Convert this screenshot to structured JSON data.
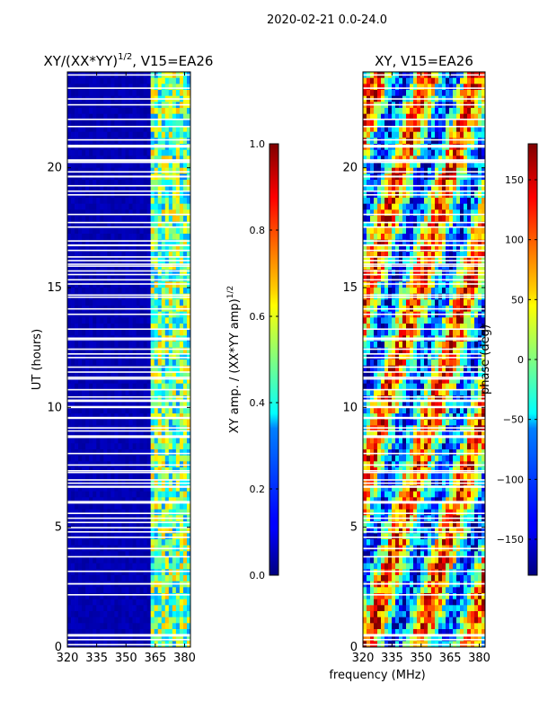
{
  "suptitle": "2020-02-21 0.0-24.0",
  "chart_data": [
    {
      "type": "heatmap",
      "title_text": "XY/(XX*YY)",
      "title_exp": "1/2",
      "title_suffix": ", V15=EA26",
      "xlabel": "",
      "ylabel": "UT (hours)",
      "xlim": [
        320,
        383
      ],
      "ylim": [
        0,
        24
      ],
      "x_ticks": [
        320,
        335,
        350,
        365,
        380
      ],
      "y_ticks": [
        0,
        5,
        10,
        15,
        20
      ],
      "colorbar": {
        "label_text": "XY amp. / (XX*YY amp)",
        "label_exp": "1/2",
        "range": [
          0.0,
          1.0
        ],
        "ticks": [
          0.0,
          0.2,
          0.4,
          0.6,
          0.8,
          1.0
        ],
        "tick_labels": [
          "0.0",
          "0.2",
          "0.4",
          "0.6",
          "0.8",
          "1.0"
        ]
      }
    },
    {
      "type": "heatmap",
      "title_text": "XY, V15=EA26",
      "xlabel": "frequency (MHz)",
      "ylabel": "",
      "xlim": [
        320,
        383
      ],
      "ylim": [
        0,
        24
      ],
      "x_ticks": [
        320,
        335,
        350,
        365,
        380
      ],
      "y_ticks": [
        0,
        5,
        10,
        15,
        20
      ],
      "colorbar": {
        "label_text": "phase (deg)",
        "range": [
          -180,
          180
        ],
        "ticks": [
          -150,
          -100,
          -50,
          0,
          50,
          100,
          150
        ],
        "tick_labels": [
          "−150",
          "−100",
          "−50",
          "0",
          "50",
          "100",
          "150"
        ]
      }
    }
  ],
  "colormap": "jet"
}
